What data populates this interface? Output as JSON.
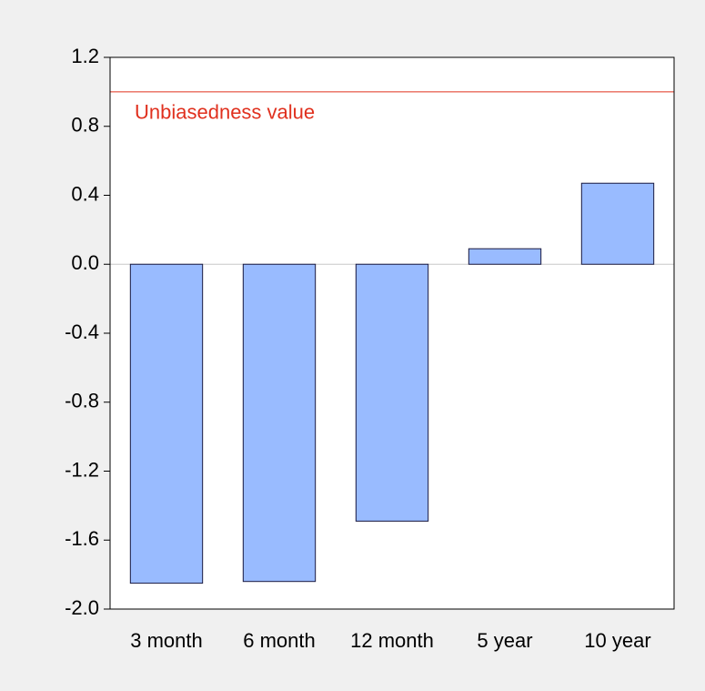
{
  "chart_data": {
    "type": "bar",
    "categories": [
      "3 month",
      "6 month",
      "12 month",
      "5 year",
      "10 year"
    ],
    "values": [
      -1.85,
      -1.84,
      -1.49,
      0.09,
      0.47
    ],
    "color": "#99bbff",
    "ylim": [
      -2.0,
      1.2
    ],
    "yticks": [
      1.2,
      0.8,
      0.4,
      {
        "value": 0,
        "label": "0.0"
      },
      -0.4,
      -0.8,
      -1.2,
      -1.6,
      {
        "value": -2,
        "label": "-2.0"
      }
    ],
    "reference_line": {
      "value": 1,
      "label": "Unbiasedness value",
      "color": "#e0301e"
    }
  }
}
